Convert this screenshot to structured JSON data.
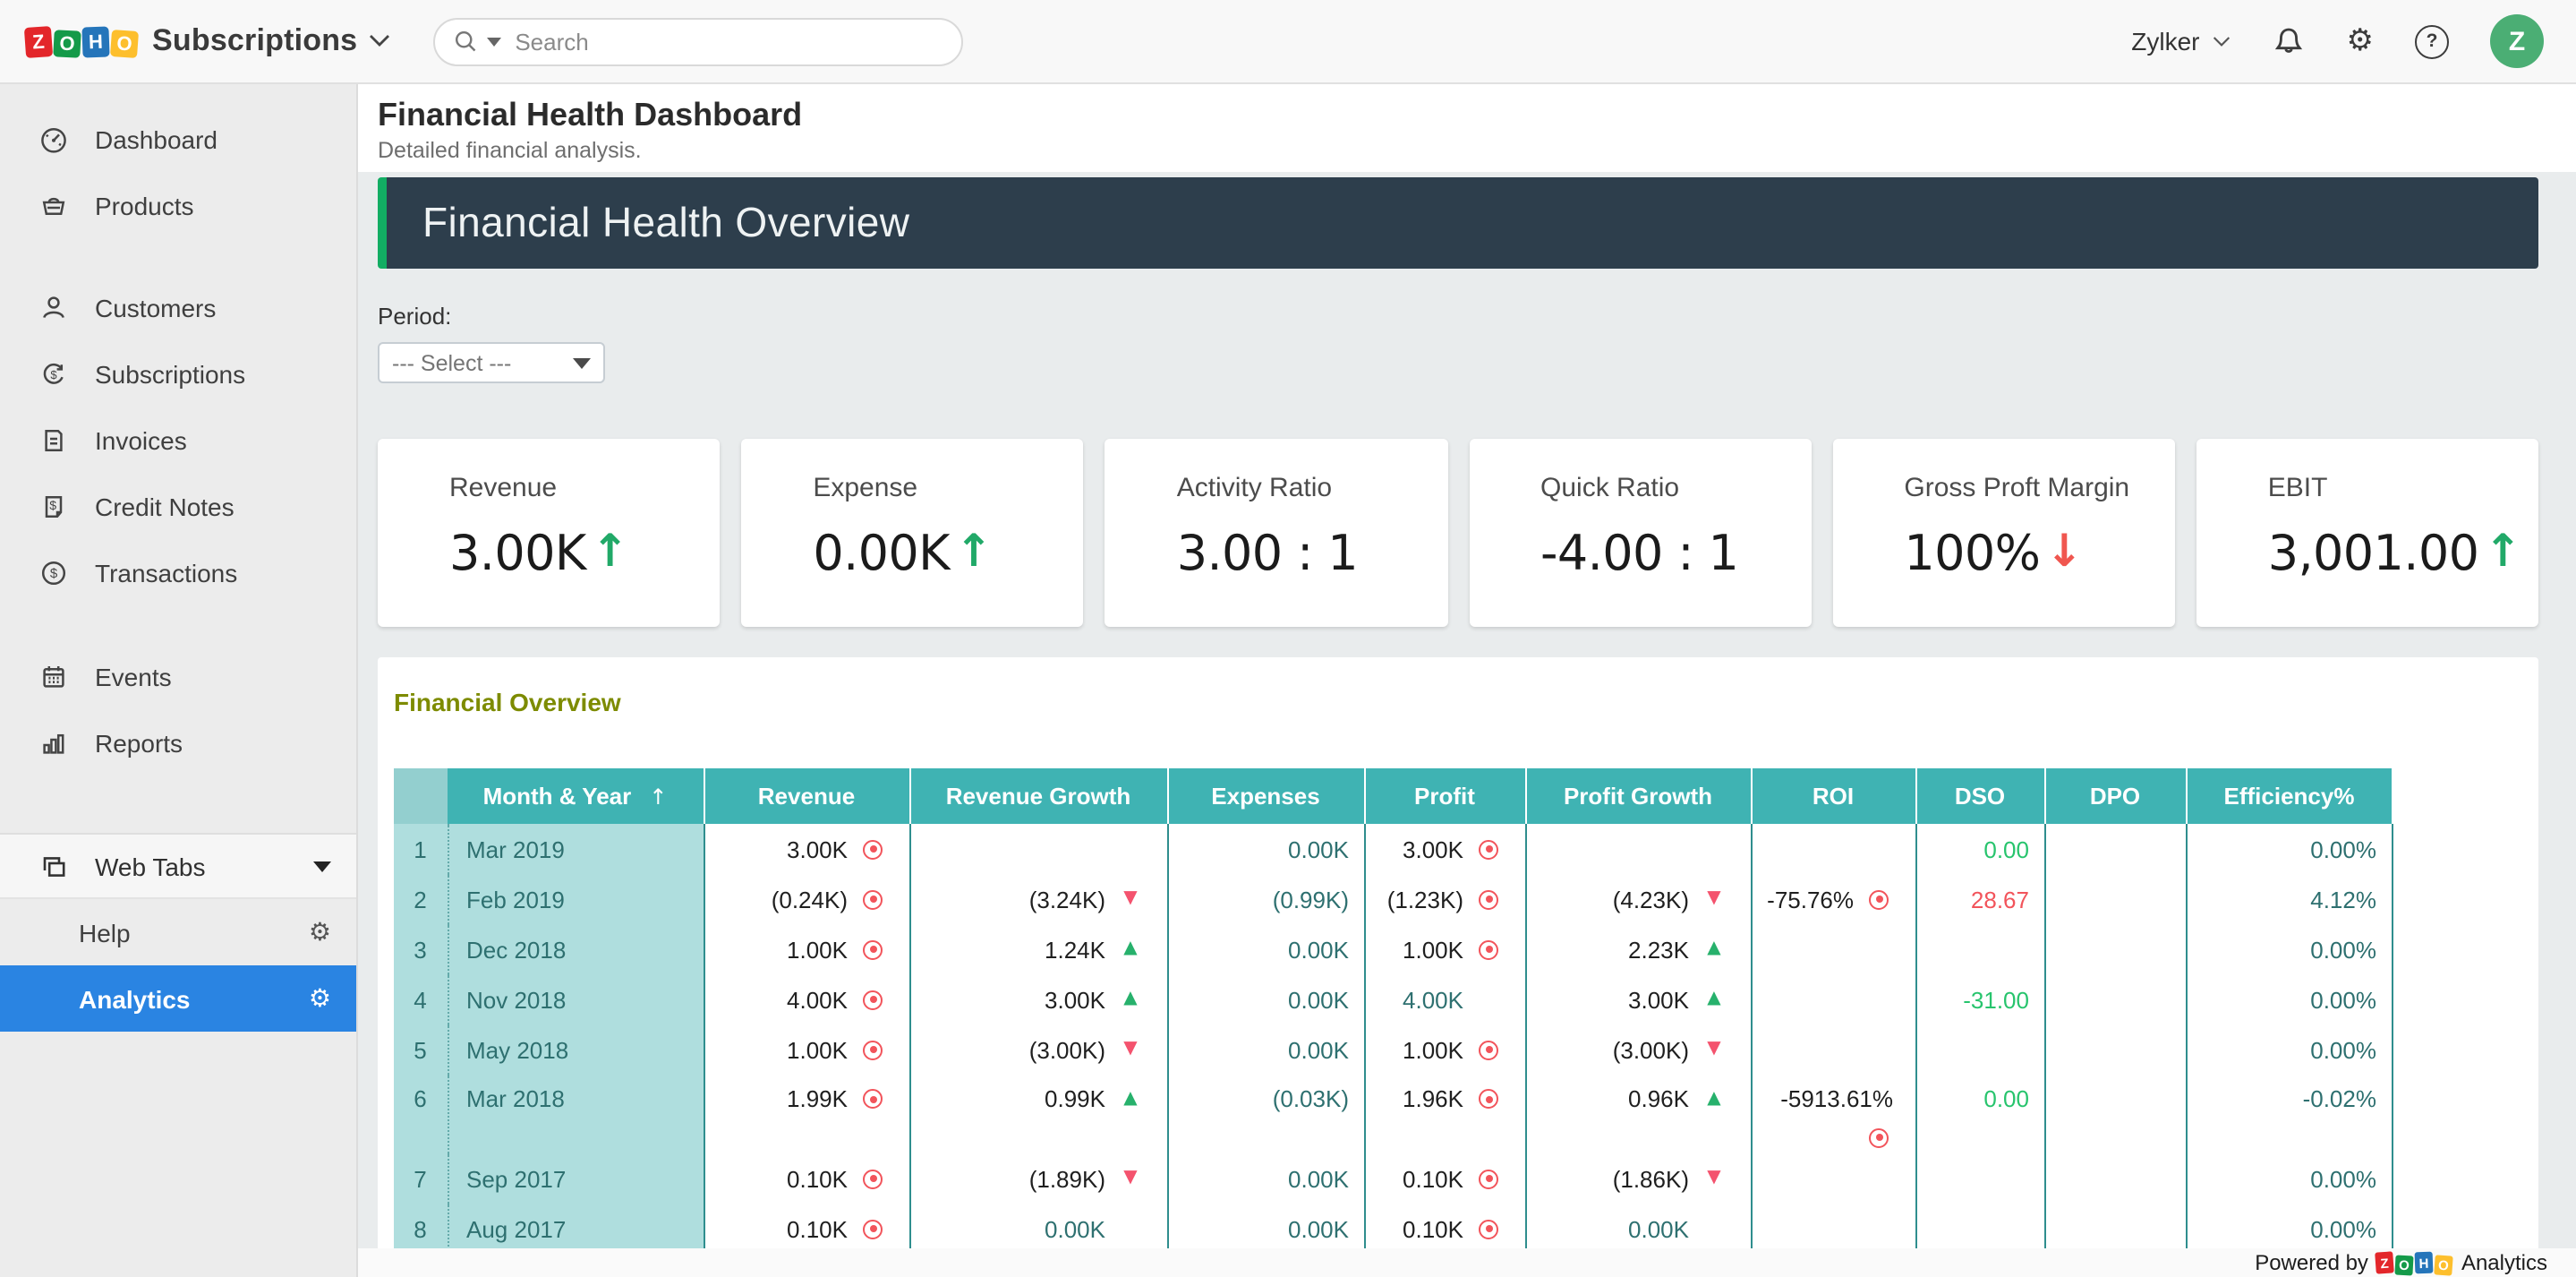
{
  "colors": {
    "accent_teal": "#3fb3b3",
    "light_teal": "#afdede",
    "selected_blue": "#2a84e2",
    "banner": "#2d3e4c",
    "banner_edge": "#12ad63",
    "green": "#27c46d",
    "red": "#f2545b",
    "olive": "#7d8b00",
    "avatar_green": "#4bae74"
  },
  "topbar": {
    "logo_tiles": [
      {
        "letter": "Z",
        "color": "#e3262a"
      },
      {
        "letter": "O",
        "color": "#149a49"
      },
      {
        "letter": "H",
        "color": "#2575ba"
      },
      {
        "letter": "O",
        "color": "#fdbf2d"
      }
    ],
    "product": "Subscriptions",
    "search": {
      "placeholder": "Search"
    },
    "org": "Zylker",
    "avatar_letter": "Z"
  },
  "sidebar": {
    "items": [
      {
        "label": "Dashboard",
        "icon": "dashboard-icon",
        "gap_after": false
      },
      {
        "label": "Products",
        "icon": "products-icon",
        "gap_after": "a"
      },
      {
        "label": "Customers",
        "icon": "customers-icon",
        "gap_after": false
      },
      {
        "label": "Subscriptions",
        "icon": "subscriptions-icon",
        "gap_after": false
      },
      {
        "label": "Invoices",
        "icon": "invoices-icon",
        "gap_after": false
      },
      {
        "label": "Credit Notes",
        "icon": "credit-notes-icon",
        "gap_after": false
      },
      {
        "label": "Transactions",
        "icon": "transactions-icon",
        "gap_after": "b"
      },
      {
        "label": "Events",
        "icon": "events-icon",
        "gap_after": false
      },
      {
        "label": "Reports",
        "icon": "reports-icon",
        "gap_after": "c"
      }
    ],
    "web_tabs_label": "Web Tabs",
    "tabs": [
      {
        "label": "Help",
        "selected": false
      },
      {
        "label": "Analytics",
        "selected": true
      }
    ]
  },
  "page": {
    "title": "Financial Health Dashboard",
    "subtitle": "Detailed financial analysis."
  },
  "overview_banner": "Financial Health Overview",
  "filter": {
    "label": "Period:",
    "selected": "--- Select ---"
  },
  "kpis": [
    {
      "label": "Revenue",
      "value": "3.00K",
      "trend": "up"
    },
    {
      "label": "Expense",
      "value": "0.00K",
      "trend": "up"
    },
    {
      "label": "Activity Ratio",
      "value": "3.00 : 1",
      "trend": null
    },
    {
      "label": "Quick Ratio",
      "value": "-4.00 : 1",
      "trend": null
    },
    {
      "label": "Gross Proft Margin",
      "value": "100%",
      "trend": "down"
    },
    {
      "label": "EBIT",
      "value": "3,001.00",
      "trend": "up"
    }
  ],
  "financial_table": {
    "title": "Financial Overview",
    "columns": [
      "Month & Year",
      "Revenue",
      "Revenue Growth",
      "Expenses",
      "Profit",
      "Profit Growth",
      "ROI",
      "DSO",
      "DPO",
      "Efficiency%"
    ],
    "sort_column": "Month & Year",
    "rows": [
      {
        "n": "1",
        "month": "Mar 2019",
        "tall": false,
        "cells": [
          {
            "v": "3.00K",
            "c": "dark",
            "ind": "target"
          },
          {
            "v": ""
          },
          {
            "v": "0.00K",
            "c": "teal"
          },
          {
            "v": "3.00K",
            "c": "dark",
            "ind": "target"
          },
          {
            "v": ""
          },
          {
            "v": ""
          },
          {
            "v": "0.00",
            "c": "green"
          },
          {
            "v": ""
          },
          {
            "v": "0.00%",
            "c": "teal"
          }
        ]
      },
      {
        "n": "2",
        "month": "Feb 2019",
        "tall": false,
        "cells": [
          {
            "v": "(0.24K)",
            "c": "dark",
            "ind": "target"
          },
          {
            "v": "(3.24K)",
            "c": "dark",
            "ind": "down"
          },
          {
            "v": "(0.99K)",
            "c": "teal"
          },
          {
            "v": "(1.23K)",
            "c": "dark",
            "ind": "target"
          },
          {
            "v": "(4.23K)",
            "c": "dark",
            "ind": "down"
          },
          {
            "v": "-75.76%",
            "c": "dark",
            "ind": "target"
          },
          {
            "v": "28.67",
            "c": "red"
          },
          {
            "v": ""
          },
          {
            "v": "4.12%",
            "c": "teal"
          }
        ]
      },
      {
        "n": "3",
        "month": "Dec 2018",
        "tall": false,
        "cells": [
          {
            "v": "1.00K",
            "c": "dark",
            "ind": "target"
          },
          {
            "v": "1.24K",
            "c": "dark",
            "ind": "up"
          },
          {
            "v": "0.00K",
            "c": "teal"
          },
          {
            "v": "1.00K",
            "c": "dark",
            "ind": "target"
          },
          {
            "v": "2.23K",
            "c": "dark",
            "ind": "up"
          },
          {
            "v": ""
          },
          {
            "v": ""
          },
          {
            "v": ""
          },
          {
            "v": "0.00%",
            "c": "teal"
          }
        ]
      },
      {
        "n": "4",
        "month": "Nov 2018",
        "tall": false,
        "cells": [
          {
            "v": "4.00K",
            "c": "dark",
            "ind": "target"
          },
          {
            "v": "3.00K",
            "c": "dark",
            "ind": "up"
          },
          {
            "v": "0.00K",
            "c": "teal"
          },
          {
            "v": "4.00K",
            "c": "teal"
          },
          {
            "v": "3.00K",
            "c": "dark",
            "ind": "up"
          },
          {
            "v": ""
          },
          {
            "v": "-31.00",
            "c": "green"
          },
          {
            "v": ""
          },
          {
            "v": "0.00%",
            "c": "teal"
          }
        ]
      },
      {
        "n": "5",
        "month": "May 2018",
        "tall": false,
        "cells": [
          {
            "v": "1.00K",
            "c": "dark",
            "ind": "target"
          },
          {
            "v": "(3.00K)",
            "c": "dark",
            "ind": "down"
          },
          {
            "v": "0.00K",
            "c": "teal"
          },
          {
            "v": "1.00K",
            "c": "dark",
            "ind": "target"
          },
          {
            "v": "(3.00K)",
            "c": "dark",
            "ind": "down"
          },
          {
            "v": ""
          },
          {
            "v": ""
          },
          {
            "v": ""
          },
          {
            "v": "0.00%",
            "c": "teal"
          }
        ]
      },
      {
        "n": "6",
        "month": "Mar 2018",
        "tall": true,
        "cells": [
          {
            "v": "1.99K",
            "c": "dark",
            "ind": "target"
          },
          {
            "v": "0.99K",
            "c": "dark",
            "ind": "up"
          },
          {
            "v": "(0.03K)",
            "c": "teal"
          },
          {
            "v": "1.96K",
            "c": "dark",
            "ind": "target"
          },
          {
            "v": "0.96K",
            "c": "dark",
            "ind": "up"
          },
          {
            "v": "-5913.61%",
            "c": "dark",
            "ind": "target",
            "wrap": true
          },
          {
            "v": "0.00",
            "c": "green"
          },
          {
            "v": ""
          },
          {
            "v": "-0.02%",
            "c": "teal"
          }
        ]
      },
      {
        "n": "7",
        "month": "Sep 2017",
        "tall": false,
        "cells": [
          {
            "v": "0.10K",
            "c": "dark",
            "ind": "target"
          },
          {
            "v": "(1.89K)",
            "c": "dark",
            "ind": "down"
          },
          {
            "v": "0.00K",
            "c": "teal"
          },
          {
            "v": "0.10K",
            "c": "dark",
            "ind": "target"
          },
          {
            "v": "(1.86K)",
            "c": "dark",
            "ind": "down"
          },
          {
            "v": ""
          },
          {
            "v": ""
          },
          {
            "v": ""
          },
          {
            "v": "0.00%",
            "c": "teal"
          }
        ]
      },
      {
        "n": "8",
        "month": "Aug 2017",
        "tall": false,
        "cells": [
          {
            "v": "0.10K",
            "c": "dark",
            "ind": "target"
          },
          {
            "v": "0.00K",
            "c": "teal"
          },
          {
            "v": "0.00K",
            "c": "teal"
          },
          {
            "v": "0.10K",
            "c": "dark",
            "ind": "target"
          },
          {
            "v": "0.00K",
            "c": "teal"
          },
          {
            "v": ""
          },
          {
            "v": ""
          },
          {
            "v": ""
          },
          {
            "v": "0.00%",
            "c": "teal"
          }
        ]
      }
    ]
  },
  "footer": {
    "powered_by": "Powered by",
    "brand_suffix": "Analytics",
    "logo_tiles": [
      {
        "letter": "Z",
        "color": "#e3262a"
      },
      {
        "letter": "O",
        "color": "#149a49"
      },
      {
        "letter": "H",
        "color": "#2575ba"
      },
      {
        "letter": "O",
        "color": "#fdbf2d"
      }
    ]
  }
}
